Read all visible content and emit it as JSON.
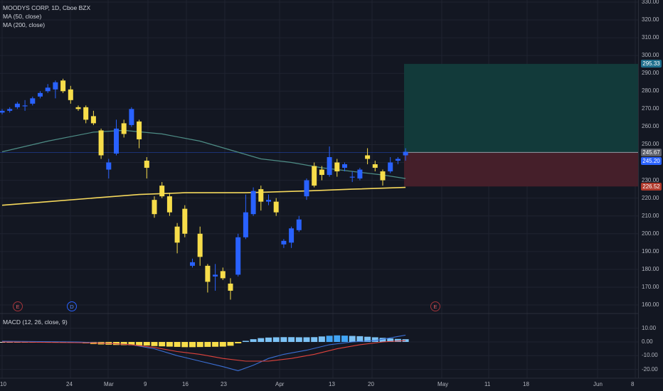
{
  "legend": {
    "symbol_line": "MOODYS CORP, 1D, Cboe BZX",
    "ma50": "MA (50, close)",
    "ma200": "MA (200, close)",
    "macd": "MACD (12, 26, close, 9)"
  },
  "price_axis": {
    "ticks": [
      "330.00",
      "320.00",
      "310.00",
      "300.00",
      "290.00",
      "280.00",
      "270.00",
      "260.00",
      "250.00",
      "240.00",
      "230.00",
      "220.00",
      "210.00",
      "200.00",
      "190.00",
      "180.00",
      "170.00",
      "160.00"
    ],
    "tags": {
      "target": "295.33",
      "entry": "245.67",
      "last": "245.20",
      "stop": "226.52"
    }
  },
  "macd_axis": {
    "ticks": [
      "10.00",
      "0.00",
      "-10.00",
      "-20.00"
    ]
  },
  "time_axis": {
    "labels": [
      "10",
      "24",
      "Mar",
      "9",
      "16",
      "23",
      "Apr",
      "13",
      "20",
      "May",
      "11",
      "18",
      "Jun",
      "8"
    ]
  },
  "events": [
    "E",
    "D",
    "E"
  ],
  "colors": {
    "background": "#131722",
    "up_candle": "#2962ff",
    "down_candle": "#f7dd4a",
    "ma50": "#4e8d86",
    "ma200": "#f5d85c",
    "profit_zone": "#123a3a",
    "loss_zone": "#451f2a",
    "macd_line": "#3b6fd4",
    "signal_line": "#e0433c"
  },
  "chart_data": {
    "type": "candlestick",
    "yrange": [
      155,
      333
    ],
    "candles": [
      {
        "o": 268,
        "h": 270,
        "l": 267,
        "c": 269
      },
      {
        "o": 269,
        "h": 271,
        "l": 268,
        "c": 270
      },
      {
        "o": 271,
        "h": 274,
        "l": 270,
        "c": 273
      },
      {
        "o": 272,
        "h": 275,
        "l": 269,
        "c": 272
      },
      {
        "o": 273,
        "h": 277,
        "l": 272,
        "c": 276
      },
      {
        "o": 277,
        "h": 280,
        "l": 276,
        "c": 279
      },
      {
        "o": 280,
        "h": 284,
        "l": 279,
        "c": 282
      },
      {
        "o": 281,
        "h": 286,
        "l": 276,
        "c": 285
      },
      {
        "o": 286,
        "h": 287,
        "l": 279,
        "c": 280
      },
      {
        "o": 281,
        "h": 283,
        "l": 273,
        "c": 275
      },
      {
        "o": 271,
        "h": 272,
        "l": 269,
        "c": 270
      },
      {
        "o": 271,
        "h": 272,
        "l": 262,
        "c": 264
      },
      {
        "o": 266,
        "h": 269,
        "l": 261,
        "c": 262
      },
      {
        "o": 258,
        "h": 259,
        "l": 242,
        "c": 244
      },
      {
        "o": 236,
        "h": 242,
        "l": 231,
        "c": 240
      },
      {
        "o": 245,
        "h": 264,
        "l": 244,
        "c": 259
      },
      {
        "o": 262,
        "h": 264,
        "l": 254,
        "c": 256
      },
      {
        "o": 261,
        "h": 271,
        "l": 260,
        "c": 270
      },
      {
        "o": 263,
        "h": 264,
        "l": 248,
        "c": 253
      },
      {
        "o": 241,
        "h": 243,
        "l": 231,
        "c": 237
      },
      {
        "o": 219,
        "h": 221,
        "l": 209,
        "c": 211
      },
      {
        "o": 227,
        "h": 229,
        "l": 220,
        "c": 221
      },
      {
        "o": 221,
        "h": 223,
        "l": 210,
        "c": 212
      },
      {
        "o": 204,
        "h": 206,
        "l": 189,
        "c": 195
      },
      {
        "o": 214,
        "h": 216,
        "l": 198,
        "c": 200
      },
      {
        "o": 182,
        "h": 186,
        "l": 181,
        "c": 184
      },
      {
        "o": 200,
        "h": 204,
        "l": 182,
        "c": 187
      },
      {
        "o": 182,
        "h": 183,
        "l": 167,
        "c": 173
      },
      {
        "o": 176,
        "h": 183,
        "l": 168,
        "c": 177
      },
      {
        "o": 179,
        "h": 181,
        "l": 174,
        "c": 175
      },
      {
        "o": 172,
        "h": 175,
        "l": 163,
        "c": 168
      },
      {
        "o": 177,
        "h": 200,
        "l": 176,
        "c": 198
      },
      {
        "o": 198,
        "h": 222,
        "l": 197,
        "c": 212
      },
      {
        "o": 211,
        "h": 226,
        "l": 210,
        "c": 224
      },
      {
        "o": 225,
        "h": 227,
        "l": 213,
        "c": 218
      },
      {
        "o": 218,
        "h": 222,
        "l": 216,
        "c": 219
      },
      {
        "o": 218,
        "h": 220,
        "l": 210,
        "c": 212
      },
      {
        "o": 194,
        "h": 197,
        "l": 192,
        "c": 196
      },
      {
        "o": 195,
        "h": 204,
        "l": 192,
        "c": 203
      },
      {
        "o": 202,
        "h": 210,
        "l": 201,
        "c": 208
      },
      {
        "o": 221,
        "h": 231,
        "l": 219,
        "c": 230
      },
      {
        "o": 238,
        "h": 240,
        "l": 226,
        "c": 227
      },
      {
        "o": 236,
        "h": 238,
        "l": 230,
        "c": 233
      },
      {
        "o": 233,
        "h": 249,
        "l": 232,
        "c": 243
      },
      {
        "o": 240,
        "h": 242,
        "l": 232,
        "c": 235
      },
      {
        "o": 237,
        "h": 240,
        "l": 235,
        "c": 239
      },
      {
        "o": 232,
        "h": 235,
        "l": 229,
        "c": 232
      },
      {
        "o": 231,
        "h": 237,
        "l": 230,
        "c": 236
      },
      {
        "o": 244,
        "h": 248,
        "l": 239,
        "c": 242
      },
      {
        "o": 239,
        "h": 241,
        "l": 235,
        "c": 237
      },
      {
        "o": 235,
        "h": 236,
        "l": 227,
        "c": 230
      },
      {
        "o": 235,
        "h": 243,
        "l": 234,
        "c": 240
      },
      {
        "o": 241,
        "h": 243,
        "l": 239,
        "c": 242
      },
      {
        "o": 244,
        "h": 248,
        "l": 241,
        "c": 246
      }
    ],
    "series": [
      {
        "name": "MA (50, close)",
        "values": [
          null,
          null,
          null,
          null,
          null,
          null,
          null,
          null,
          null,
          null,
          null,
          null,
          null,
          null,
          null,
          null,
          null,
          null,
          null,
          null,
          null,
          null,
          null,
          null,
          null,
          null,
          null,
          null,
          null,
          null,
          null,
          null,
          null,
          null,
          null,
          null,
          null,
          null,
          null,
          null,
          null,
          null,
          null,
          null,
          null,
          null,
          null,
          null,
          null,
          null,
          null,
          null,
          null,
          null
        ]
      },
      {
        "name": "MA (200, close)",
        "values": []
      }
    ],
    "ma50_points": [
      [
        0,
        246
      ],
      [
        6,
        252
      ],
      [
        12,
        257
      ],
      [
        16,
        258
      ],
      [
        21,
        256
      ],
      [
        26,
        252
      ],
      [
        30,
        247
      ],
      [
        34,
        242
      ],
      [
        38,
        240
      ],
      [
        42,
        237
      ],
      [
        46,
        235
      ],
      [
        50,
        233
      ],
      [
        53,
        231
      ]
    ],
    "ma200_points": [
      [
        0,
        216
      ],
      [
        6,
        218
      ],
      [
        12,
        220
      ],
      [
        18,
        222
      ],
      [
        24,
        223
      ],
      [
        32,
        223
      ],
      [
        40,
        224
      ],
      [
        46,
        225
      ],
      [
        53,
        226
      ]
    ],
    "macd": {
      "histogram": [
        -0.5,
        -0.5,
        -0.5,
        -0.5,
        -0.5,
        -0.5,
        -0.5,
        -0.5,
        -0.5,
        -0.5,
        -0.5,
        -1,
        -1.5,
        -1.8,
        -2,
        -2.2,
        -2.3,
        -2.4,
        -2.5,
        -2.6,
        -3,
        -3.2,
        -3.4,
        -3.6,
        -3.8,
        -3.8,
        -3.7,
        -3.6,
        -3.5,
        -3.4,
        -2.8,
        -1,
        0.8,
        2,
        2.8,
        3.2,
        3.4,
        3.5,
        3.5,
        3.4,
        3.4,
        3.5,
        4,
        4.5,
        4.8,
        4.6,
        4.4,
        4.2,
        3.8,
        3.4,
        3,
        2.6,
        2.2,
        2
      ],
      "macd_line_points": [
        [
          0,
          0.5
        ],
        [
          10,
          0
        ],
        [
          14,
          -1
        ],
        [
          17,
          -2
        ],
        [
          20,
          -5
        ],
        [
          23,
          -10
        ],
        [
          26,
          -14
        ],
        [
          29,
          -18
        ],
        [
          31,
          -21
        ],
        [
          33,
          -17
        ],
        [
          35,
          -12
        ],
        [
          37,
          -9
        ],
        [
          40,
          -6
        ],
        [
          43,
          -2
        ],
        [
          46,
          0
        ],
        [
          49,
          1
        ],
        [
          52,
          4
        ],
        [
          53,
          5
        ]
      ],
      "signal_line_points": [
        [
          0,
          0
        ],
        [
          10,
          -0.5
        ],
        [
          14,
          -1
        ],
        [
          17,
          -2
        ],
        [
          20,
          -4
        ],
        [
          23,
          -7
        ],
        [
          26,
          -9
        ],
        [
          29,
          -12
        ],
        [
          32,
          -14
        ],
        [
          35,
          -14
        ],
        [
          38,
          -12
        ],
        [
          41,
          -9
        ],
        [
          44,
          -5
        ],
        [
          47,
          -2
        ],
        [
          50,
          0
        ],
        [
          53,
          1
        ]
      ]
    }
  }
}
